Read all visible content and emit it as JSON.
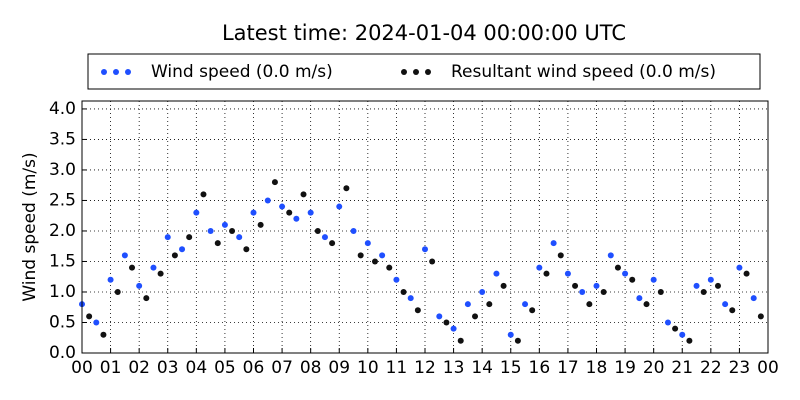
{
  "chart_data": {
    "type": "scatter",
    "title": "Latest time: 2024-01-04 00:00:00 UTC",
    "y_label": "Wind speed (m/s)",
    "series": [
      {
        "name": "Wind speed (0.0 m/s)",
        "color": "#1f4fff",
        "x": [
          0,
          0.5,
          1,
          1.5,
          2,
          2.5,
          3,
          3.5,
          4,
          4.5,
          5,
          5.5,
          6,
          6.5,
          7,
          7.5,
          8,
          8.5,
          9,
          9.5,
          10,
          10.5,
          11,
          11.5,
          12,
          12.5,
          13,
          13.5,
          14,
          14.5,
          15,
          15.5,
          16,
          16.5,
          17,
          17.5,
          18,
          18.5,
          19,
          19.5,
          20,
          20.5,
          21,
          21.5,
          22,
          22.5,
          23,
          23.5
        ],
        "values": [
          0.8,
          0.5,
          1.2,
          1.6,
          1.1,
          1.4,
          1.9,
          1.7,
          2.3,
          2.0,
          2.1,
          1.9,
          2.3,
          2.5,
          2.4,
          2.2,
          2.3,
          1.9,
          2.4,
          2.0,
          1.8,
          1.6,
          1.2,
          0.9,
          1.7,
          0.6,
          0.4,
          0.8,
          1.0,
          1.3,
          0.3,
          0.8,
          1.4,
          1.8,
          1.3,
          1.0,
          1.1,
          1.6,
          1.3,
          0.9,
          1.2,
          0.5,
          0.3,
          1.1,
          1.2,
          0.8,
          1.4,
          0.9
        ]
      },
      {
        "name": "Resultant wind speed (0.0 m/s)",
        "color": "#111111",
        "x": [
          0.25,
          0.75,
          1.25,
          1.75,
          2.25,
          2.75,
          3.25,
          3.75,
          4.25,
          4.75,
          5.25,
          5.75,
          6.25,
          6.75,
          7.25,
          7.75,
          8.25,
          8.75,
          9.25,
          9.75,
          10.25,
          10.75,
          11.25,
          11.75,
          12.25,
          12.75,
          13.25,
          13.75,
          14.25,
          14.75,
          15.25,
          15.75,
          16.25,
          16.75,
          17.25,
          17.75,
          18.25,
          18.75,
          19.25,
          19.75,
          20.25,
          20.75,
          21.25,
          21.75,
          22.25,
          22.75,
          23.25,
          23.75
        ],
        "values": [
          0.6,
          0.3,
          1.0,
          1.4,
          0.9,
          1.3,
          1.6,
          1.9,
          2.6,
          1.8,
          2.0,
          1.7,
          2.1,
          2.8,
          2.3,
          2.6,
          2.0,
          1.8,
          2.7,
          1.6,
          1.5,
          1.4,
          1.0,
          0.7,
          1.5,
          0.5,
          0.2,
          0.6,
          0.8,
          1.1,
          0.2,
          0.7,
          1.3,
          1.6,
          1.1,
          0.8,
          1.0,
          1.4,
          1.2,
          0.8,
          1.0,
          0.4,
          0.2,
          1.0,
          1.1,
          0.7,
          1.3,
          0.6
        ]
      }
    ],
    "xlim": [
      0,
      24
    ],
    "xticks": [
      {
        "value": 0,
        "label": "00"
      },
      {
        "value": 1,
        "label": "01"
      },
      {
        "value": 2,
        "label": "02"
      },
      {
        "value": 3,
        "label": "03"
      },
      {
        "value": 4,
        "label": "04"
      },
      {
        "value": 5,
        "label": "05"
      },
      {
        "value": 6,
        "label": "06"
      },
      {
        "value": 7,
        "label": "07"
      },
      {
        "value": 8,
        "label": "08"
      },
      {
        "value": 9,
        "label": "09"
      },
      {
        "value": 10,
        "label": "10"
      },
      {
        "value": 11,
        "label": "11"
      },
      {
        "value": 12,
        "label": "12"
      },
      {
        "value": 13,
        "label": "13"
      },
      {
        "value": 14,
        "label": "14"
      },
      {
        "value": 15,
        "label": "15"
      },
      {
        "value": 16,
        "label": "16"
      },
      {
        "value": 17,
        "label": "17"
      },
      {
        "value": 18,
        "label": "18"
      },
      {
        "value": 19,
        "label": "19"
      },
      {
        "value": 20,
        "label": "20"
      },
      {
        "value": 21,
        "label": "21"
      },
      {
        "value": 22,
        "label": "22"
      },
      {
        "value": 23,
        "label": "23"
      },
      {
        "value": 24,
        "label": "00"
      }
    ],
    "ylim": [
      0,
      4.13
    ],
    "yticks": [
      {
        "value": 0,
        "label": "0.0"
      },
      0.5,
      {
        "value": 1,
        "label": "1.0"
      },
      1.5,
      {
        "value": 2,
        "label": "2.0"
      },
      2.5,
      {
        "value": 3,
        "label": "3.0"
      },
      3.5,
      {
        "value": 4,
        "label": "4.0"
      }
    ],
    "grid": true
  }
}
